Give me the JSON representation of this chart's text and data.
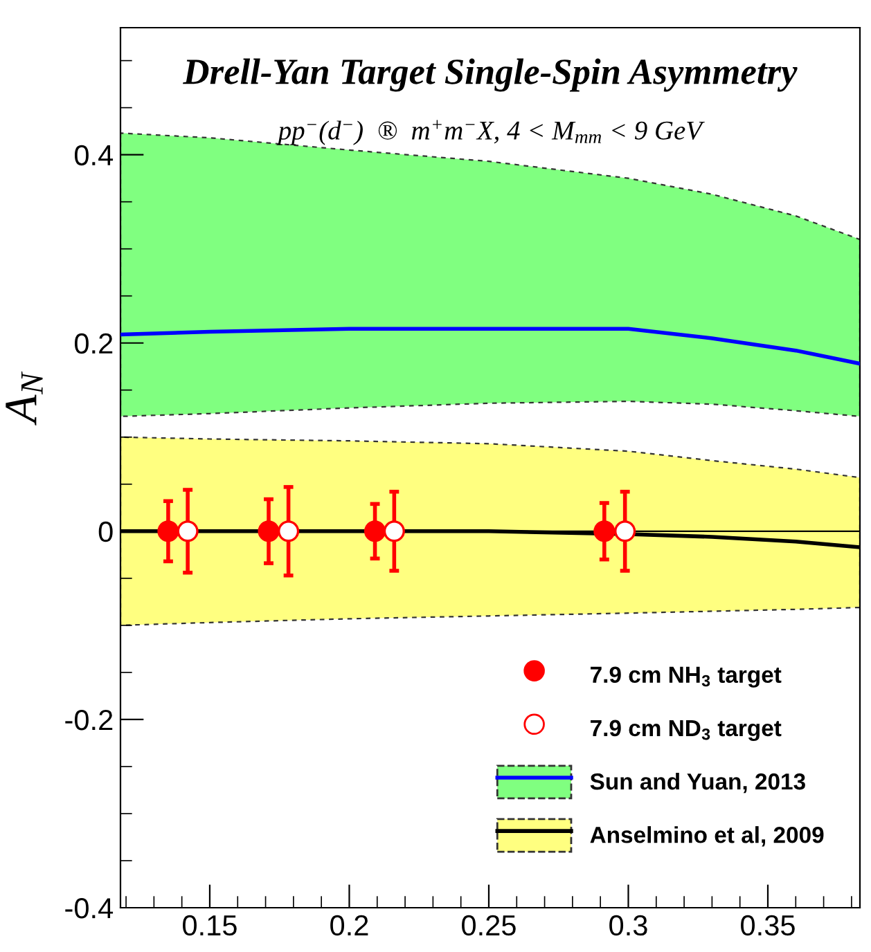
{
  "chart_data": {
    "type": "scatter",
    "title": "Drell-Yan Target Single-Spin Asymmetry",
    "subtitle": "pp$^{−}$(d$^{−}$)  ®  m$^{+}$m$^{−}$X, 4 < M$_{mm}$ < 9 GeV",
    "ylabel": "A$_{N}$",
    "xlim": [
      0.118,
      0.383
    ],
    "ylim": [
      -0.4,
      0.535
    ],
    "xticks": [
      0.15,
      0.2,
      0.25,
      0.3,
      0.35
    ],
    "yticks": [
      -0.4,
      -0.2,
      0,
      0.2,
      0.4
    ],
    "grid": false,
    "legend": "bottom right",
    "ref_lines": [
      {
        "axis": "y",
        "value": 0,
        "color": "#000000"
      }
    ],
    "series": [
      {
        "name": "Sun and Yuan, 2013",
        "type": "line",
        "color": "#0000ff",
        "x": [
          0.118,
          0.15,
          0.2,
          0.25,
          0.3,
          0.33,
          0.36,
          0.383
        ],
        "values": [
          0.209,
          0.212,
          0.215,
          0.215,
          0.215,
          0.205,
          0.192,
          0.178
        ],
        "lower": [
          0.122,
          0.125,
          0.131,
          0.136,
          0.138,
          0.135,
          0.128,
          0.122
        ],
        "upper": [
          0.423,
          0.418,
          0.405,
          0.393,
          0.375,
          0.358,
          0.335,
          0.31
        ]
      },
      {
        "name": "Anselmino et al, 2009",
        "type": "line",
        "color": "#000000",
        "x": [
          0.118,
          0.15,
          0.2,
          0.25,
          0.3,
          0.33,
          0.36,
          0.383
        ],
        "values": [
          0.0,
          0.0,
          0.0,
          0.0,
          -0.003,
          -0.006,
          -0.011,
          -0.017
        ],
        "lower": [
          -0.1,
          -0.097,
          -0.093,
          -0.09,
          -0.087,
          -0.085,
          -0.083,
          -0.081
        ],
        "upper": [
          0.1,
          0.098,
          0.096,
          0.093,
          0.085,
          0.075,
          0.066,
          0.057
        ]
      },
      {
        "name": "7.9 cm NH$_{3}$ target",
        "marker": "circle",
        "color": "#ff0000",
        "x": [
          0.1351,
          0.1711,
          0.2092,
          0.2914
        ],
        "values": [
          0,
          0,
          0,
          0
        ],
        "errors": [
          0.032,
          0.034,
          0.029,
          0.03
        ]
      },
      {
        "name": "7.9 cm ND$_{3}$ target",
        "marker": "circle",
        "color": "#ff0000",
        "x": [
          0.1421,
          0.1782,
          0.2161,
          0.2988
        ],
        "values": [
          0,
          0,
          0,
          0
        ],
        "errors": [
          0.044,
          0.047,
          0.042,
          0.042
        ]
      }
    ]
  }
}
